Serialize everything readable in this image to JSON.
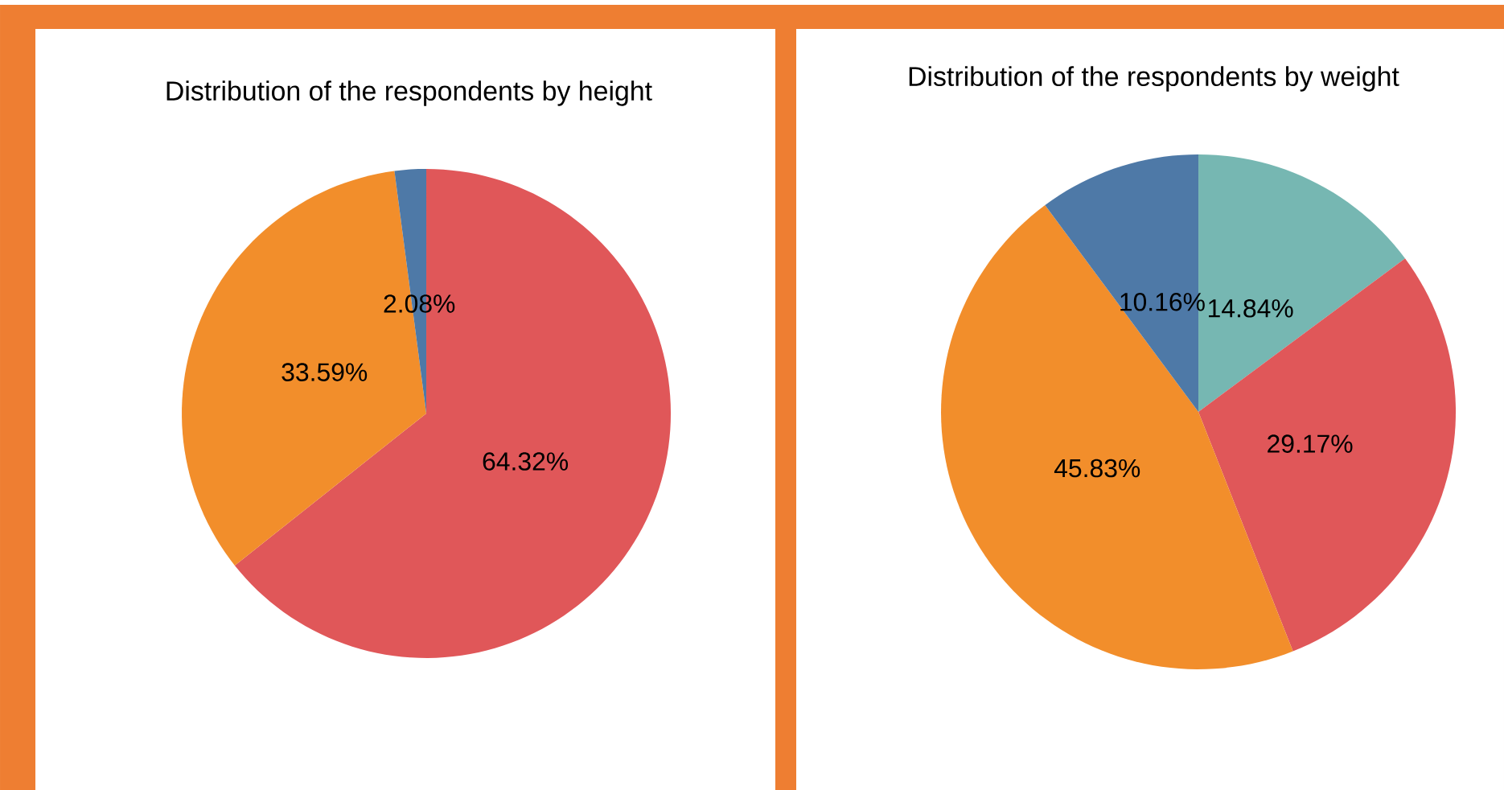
{
  "chart_data": [
    {
      "type": "pie",
      "title": "Distribution of the respondents by height",
      "categories": [
        null,
        null,
        null
      ],
      "values": [
        64.32,
        33.59,
        2.08
      ],
      "colors": [
        "#e05759",
        "#f28e2b",
        "#4e79a7"
      ],
      "value_labels": [
        "64.32%",
        "33.59%",
        "2.08%"
      ]
    },
    {
      "type": "pie",
      "title": "Distribution of the respondents by weight",
      "categories": [
        null,
        null,
        null,
        null
      ],
      "values": [
        14.84,
        29.17,
        45.83,
        10.16
      ],
      "colors": [
        "#76b7b2",
        "#e05759",
        "#f28e2b",
        "#4e79a7"
      ],
      "value_labels": [
        "14.84%",
        "29.17%",
        "45.83%",
        "10.16%"
      ]
    }
  ]
}
